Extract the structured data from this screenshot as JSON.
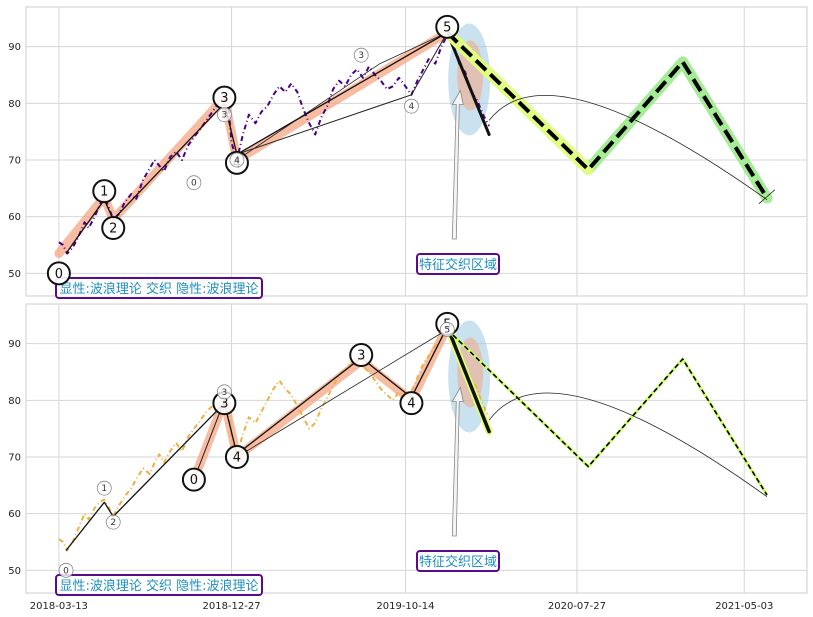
{
  "chart_data": {
    "type": "line",
    "x_ticks": [
      "2018-03-13",
      "2018-12-27",
      "2019-10-14",
      "2020-07-27",
      "2021-05-03"
    ],
    "y_ticks": [
      50,
      60,
      70,
      80,
      90
    ],
    "ylim": [
      46,
      97
    ],
    "xlim": [
      "2018-01-17",
      "2021-08-16"
    ],
    "grid": true,
    "colors": {
      "top_price": "#4b0082",
      "bottom_price": "#f0b040",
      "wave_band": "#f4a582",
      "projection_band": "#a6ec96",
      "projection_line": "#000000",
      "ellipse_outer": "#9ecae1",
      "ellipse_inner": "#f4a582",
      "box_border": "#5b0a8c",
      "box_text": "#1f8fbf"
    },
    "panels": [
      {
        "id": "top",
        "box_label": "显性:波浪理论 交织 隐性:波浪理论",
        "annotation": "特征交织区域",
        "price": {
          "name": "price",
          "points": [
            [
              "2018-03-13",
              55.5
            ],
            [
              "2018-03-20",
              55.0
            ],
            [
              "2018-03-27",
              53.5
            ],
            [
              "2018-04-05",
              54.5
            ],
            [
              "2018-04-15",
              56.5
            ],
            [
              "2018-04-25",
              59.0
            ],
            [
              "2018-05-02",
              58.0
            ],
            [
              "2018-05-12",
              60.0
            ],
            [
              "2018-05-20",
              62.0
            ],
            [
              "2018-05-28",
              63.5
            ],
            [
              "2018-06-05",
              61.5
            ],
            [
              "2018-06-12",
              59.5
            ],
            [
              "2018-06-22",
              60.5
            ],
            [
              "2018-07-01",
              62.5
            ],
            [
              "2018-07-12",
              64.0
            ],
            [
              "2018-07-20",
              63.0
            ],
            [
              "2018-08-01",
              66.5
            ],
            [
              "2018-08-12",
              68.5
            ],
            [
              "2018-08-20",
              70.0
            ],
            [
              "2018-08-28",
              69.0
            ],
            [
              "2018-09-05",
              68.0
            ],
            [
              "2018-09-15",
              70.5
            ],
            [
              "2018-09-25",
              71.5
            ],
            [
              "2018-10-05",
              70.0
            ],
            [
              "2018-10-15",
              72.5
            ],
            [
              "2018-10-25",
              74.0
            ],
            [
              "2018-11-05",
              75.5
            ],
            [
              "2018-11-15",
              77.0
            ],
            [
              "2018-11-25",
              78.5
            ],
            [
              "2018-12-05",
              80.0
            ],
            [
              "2018-12-15",
              81.0
            ],
            [
              "2018-12-22",
              79.0
            ],
            [
              "2018-12-27",
              73.0
            ],
            [
              "2019-01-05",
              70.0
            ],
            [
              "2019-01-15",
              74.5
            ],
            [
              "2019-01-25",
              78.0
            ],
            [
              "2019-02-05",
              76.5
            ],
            [
              "2019-02-15",
              78.5
            ],
            [
              "2019-02-25",
              79.5
            ],
            [
              "2019-03-07",
              81.5
            ],
            [
              "2019-03-17",
              83.0
            ],
            [
              "2019-03-27",
              82.0
            ],
            [
              "2019-04-06",
              83.5
            ],
            [
              "2019-04-16",
              82.0
            ],
            [
              "2019-04-26",
              79.0
            ],
            [
              "2019-05-06",
              76.5
            ],
            [
              "2019-05-16",
              74.5
            ],
            [
              "2019-05-26",
              77.5
            ],
            [
              "2019-06-05",
              79.5
            ],
            [
              "2019-06-15",
              82.5
            ],
            [
              "2019-06-25",
              84.0
            ],
            [
              "2019-07-05",
              83.0
            ],
            [
              "2019-07-15",
              85.0
            ],
            [
              "2019-07-25",
              86.0
            ],
            [
              "2019-08-04",
              84.5
            ],
            [
              "2019-08-14",
              86.5
            ],
            [
              "2019-08-24",
              85.0
            ],
            [
              "2019-09-03",
              84.0
            ],
            [
              "2019-09-13",
              82.5
            ],
            [
              "2019-09-23",
              83.0
            ],
            [
              "2019-10-03",
              84.5
            ],
            [
              "2019-10-14",
              83.0
            ],
            [
              "2019-10-24",
              81.5
            ],
            [
              "2019-11-03",
              84.0
            ],
            [
              "2019-11-13",
              86.0
            ],
            [
              "2019-11-23",
              88.0
            ],
            [
              "2019-12-03",
              87.0
            ],
            [
              "2019-12-13",
              90.0
            ],
            [
              "2019-12-23",
              92.0
            ],
            [
              "2020-01-02",
              90.5
            ],
            [
              "2020-01-12",
              87.0
            ],
            [
              "2020-01-22",
              85.5
            ],
            [
              "2020-02-01",
              82.0
            ],
            [
              "2020-02-11",
              80.5
            ],
            [
              "2020-02-21",
              78.0
            ],
            [
              "2020-03-02",
              76.0
            ]
          ]
        },
        "band": [
          [
            "2018-03-13",
            53.5
          ],
          [
            "2018-05-28",
            63.5
          ],
          [
            "2018-06-12",
            59.5
          ],
          [
            "2018-12-15",
            81.0
          ],
          [
            "2019-01-05",
            70.0
          ],
          [
            "2019-12-23",
            92.5
          ]
        ],
        "wave_line": [
          [
            "2018-03-25",
            53.5
          ],
          [
            "2018-05-28",
            63.0
          ],
          [
            "2018-06-12",
            59.5
          ],
          [
            "2018-12-15",
            80.0
          ],
          [
            "2019-01-05",
            71.0
          ],
          [
            "2019-12-23",
            92.5
          ],
          [
            "2020-03-02",
            74.5
          ]
        ],
        "side_line": [
          [
            "2019-01-05",
            71.0
          ],
          [
            "2019-10-24",
            81.5
          ],
          [
            "2019-12-23",
            92.5
          ]
        ],
        "thin_line": [
          [
            "2019-01-05",
            70.0
          ],
          [
            "2019-09-01",
            87.0
          ],
          [
            "2019-12-23",
            92.5
          ]
        ],
        "projection": [
          [
            "2019-12-23",
            92.5
          ],
          [
            "2020-08-15",
            68.3
          ],
          [
            "2021-01-20",
            87.3
          ],
          [
            "2021-06-10",
            63.3
          ]
        ],
        "projection_style": "thick",
        "arc": {
          "start": [
            "2020-03-02",
            77.0
          ],
          "end": [
            "2021-06-10",
            63.0
          ],
          "peak": [
            "2020-08-15",
            80.2
          ]
        },
        "labels": [
          {
            "text": "0",
            "x": "2018-03-13",
            "y": 50.0,
            "size": "big"
          },
          {
            "text": "1",
            "x": "2018-05-28",
            "y": 64.5,
            "size": "big"
          },
          {
            "text": "2",
            "x": "2018-06-12",
            "y": 58.0,
            "size": "big"
          },
          {
            "text": "3",
            "x": "2018-12-15",
            "y": 81.0,
            "size": "big"
          },
          {
            "text": "4",
            "x": "2019-01-05",
            "y": 69.5,
            "size": "big"
          },
          {
            "text": "5",
            "x": "2019-12-23",
            "y": 93.5,
            "size": "big"
          },
          {
            "text": "0",
            "x": "2018-10-25",
            "y": 66.0,
            "size": "small"
          },
          {
            "text": "3",
            "x": "2018-12-15",
            "y": 78.0,
            "size": "small"
          },
          {
            "text": "4",
            "x": "2019-01-05",
            "y": 70.0,
            "size": "small"
          },
          {
            "text": "3",
            "x": "2019-08-01",
            "y": 88.5,
            "size": "small"
          },
          {
            "text": "4",
            "x": "2019-10-24",
            "y": 79.5,
            "size": "small"
          }
        ]
      },
      {
        "id": "bottom",
        "box_label": "显性:波浪理论 交织 隐性:波浪理论",
        "annotation": "特征交织区域",
        "price": {
          "name": "price",
          "points": [
            [
              "2018-03-13",
              55.5
            ],
            [
              "2018-03-20",
              55.0
            ],
            [
              "2018-03-27",
              53.5
            ],
            [
              "2018-04-05",
              55.0
            ],
            [
              "2018-04-15",
              57.5
            ],
            [
              "2018-04-25",
              60.0
            ],
            [
              "2018-05-02",
              59.0
            ],
            [
              "2018-05-12",
              61.0
            ],
            [
              "2018-05-20",
              62.0
            ],
            [
              "2018-05-28",
              62.5
            ],
            [
              "2018-06-05",
              61.0
            ],
            [
              "2018-06-12",
              59.5
            ],
            [
              "2018-06-22",
              61.5
            ],
            [
              "2018-07-01",
              63.0
            ],
            [
              "2018-07-12",
              64.5
            ],
            [
              "2018-07-20",
              66.0
            ],
            [
              "2018-08-01",
              68.0
            ],
            [
              "2018-08-12",
              67.0
            ],
            [
              "2018-08-20",
              69.0
            ],
            [
              "2018-08-28",
              70.5
            ],
            [
              "2018-09-05",
              69.0
            ],
            [
              "2018-09-15",
              71.0
            ],
            [
              "2018-09-25",
              72.5
            ],
            [
              "2018-10-05",
              71.0
            ],
            [
              "2018-10-15",
              73.5
            ],
            [
              "2018-10-25",
              75.0
            ],
            [
              "2018-11-05",
              76.5
            ],
            [
              "2018-11-15",
              78.0
            ],
            [
              "2018-11-25",
              79.0
            ],
            [
              "2018-12-05",
              80.5
            ],
            [
              "2018-12-15",
              81.0
            ],
            [
              "2018-12-22",
              78.0
            ],
            [
              "2018-12-27",
              73.0
            ],
            [
              "2019-01-05",
              70.5
            ],
            [
              "2019-01-15",
              74.0
            ],
            [
              "2019-01-25",
              77.0
            ],
            [
              "2019-02-05",
              76.0
            ],
            [
              "2019-02-15",
              78.0
            ],
            [
              "2019-02-25",
              80.0
            ],
            [
              "2019-03-07",
              82.0
            ],
            [
              "2019-03-17",
              83.5
            ],
            [
              "2019-03-27",
              82.0
            ],
            [
              "2019-04-06",
              81.0
            ],
            [
              "2019-04-16",
              79.0
            ],
            [
              "2019-04-26",
              77.0
            ],
            [
              "2019-05-06",
              75.0
            ],
            [
              "2019-05-16",
              76.0
            ],
            [
              "2019-05-26",
              78.5
            ],
            [
              "2019-06-05",
              80.5
            ],
            [
              "2019-06-15",
              82.5
            ],
            [
              "2019-06-25",
              84.5
            ],
            [
              "2019-07-05",
              85.5
            ],
            [
              "2019-07-15",
              86.5
            ],
            [
              "2019-07-25",
              87.5
            ],
            [
              "2019-08-04",
              86.0
            ],
            [
              "2019-08-14",
              85.0
            ],
            [
              "2019-08-24",
              83.5
            ],
            [
              "2019-09-03",
              82.0
            ],
            [
              "2019-09-13",
              81.0
            ],
            [
              "2019-09-23",
              80.0
            ],
            [
              "2019-10-03",
              81.5
            ],
            [
              "2019-10-14",
              80.5
            ],
            [
              "2019-10-24",
              81.5
            ],
            [
              "2019-11-03",
              84.0
            ],
            [
              "2019-11-13",
              86.5
            ],
            [
              "2019-11-23",
              88.0
            ],
            [
              "2019-12-03",
              89.5
            ],
            [
              "2019-12-13",
              91.0
            ],
            [
              "2019-12-23",
              92.5
            ],
            [
              "2020-01-02",
              90.5
            ],
            [
              "2020-01-12",
              88.0
            ],
            [
              "2020-01-22",
              86.0
            ],
            [
              "2020-02-01",
              84.0
            ],
            [
              "2020-02-11",
              82.0
            ],
            [
              "2020-02-21",
              79.0
            ],
            [
              "2020-03-02",
              77.0
            ]
          ]
        },
        "band": [
          [
            "2018-10-25",
            66.0
          ],
          [
            "2018-12-15",
            80.0
          ],
          [
            "2019-01-05",
            70.0
          ],
          [
            "2019-08-01",
            87.0
          ],
          [
            "2019-10-24",
            80.0
          ],
          [
            "2019-12-23",
            93.0
          ]
        ],
        "wave_line": [
          [
            "2018-03-25",
            53.5
          ],
          [
            "2018-05-28",
            62.0
          ],
          [
            "2018-06-12",
            59.5
          ],
          [
            "2018-12-15",
            79.5
          ],
          [
            "2019-01-05",
            70.5
          ],
          [
            "2019-08-01",
            87.5
          ],
          [
            "2019-10-24",
            80.5
          ],
          [
            "2019-12-23",
            93.0
          ],
          [
            "2020-03-02",
            74.5
          ]
        ],
        "side_line": [
          [
            "2018-10-25",
            66.0
          ],
          [
            "2018-12-15",
            80.0
          ]
        ],
        "thin_line": [
          [
            "2019-01-05",
            70.0
          ],
          [
            "2019-12-23",
            92.5
          ]
        ],
        "projection": [
          [
            "2019-12-23",
            92.5
          ],
          [
            "2020-08-15",
            68.3
          ],
          [
            "2021-01-20",
            87.3
          ],
          [
            "2021-06-10",
            63.3
          ]
        ],
        "projection_style": "thin",
        "arc": {
          "start": [
            "2020-03-02",
            76.5
          ],
          "end": [
            "2021-06-10",
            63.0
          ],
          "peak": [
            "2020-08-15",
            80.2
          ]
        },
        "labels": [
          {
            "text": "0",
            "x": "2018-10-25",
            "y": 66.0,
            "size": "big"
          },
          {
            "text": "3",
            "x": "2018-12-15",
            "y": 79.5,
            "size": "big"
          },
          {
            "text": "4",
            "x": "2019-01-05",
            "y": 70.0,
            "size": "big"
          },
          {
            "text": "3",
            "x": "2019-08-01",
            "y": 88.0,
            "size": "big"
          },
          {
            "text": "4",
            "x": "2019-10-24",
            "y": 79.5,
            "size": "big"
          },
          {
            "text": "5",
            "x": "2019-12-23",
            "y": 93.5,
            "size": "big"
          },
          {
            "text": "0",
            "x": "2018-03-25",
            "y": 50.0,
            "size": "small"
          },
          {
            "text": "1",
            "x": "2018-05-28",
            "y": 64.5,
            "size": "small"
          },
          {
            "text": "2",
            "x": "2018-06-12",
            "y": 58.5,
            "size": "small"
          },
          {
            "text": "3",
            "x": "2018-12-15",
            "y": 81.5,
            "size": "small"
          },
          {
            "text": "5",
            "x": "2019-12-23",
            "y": 92.5,
            "size": "small"
          }
        ]
      }
    ]
  }
}
